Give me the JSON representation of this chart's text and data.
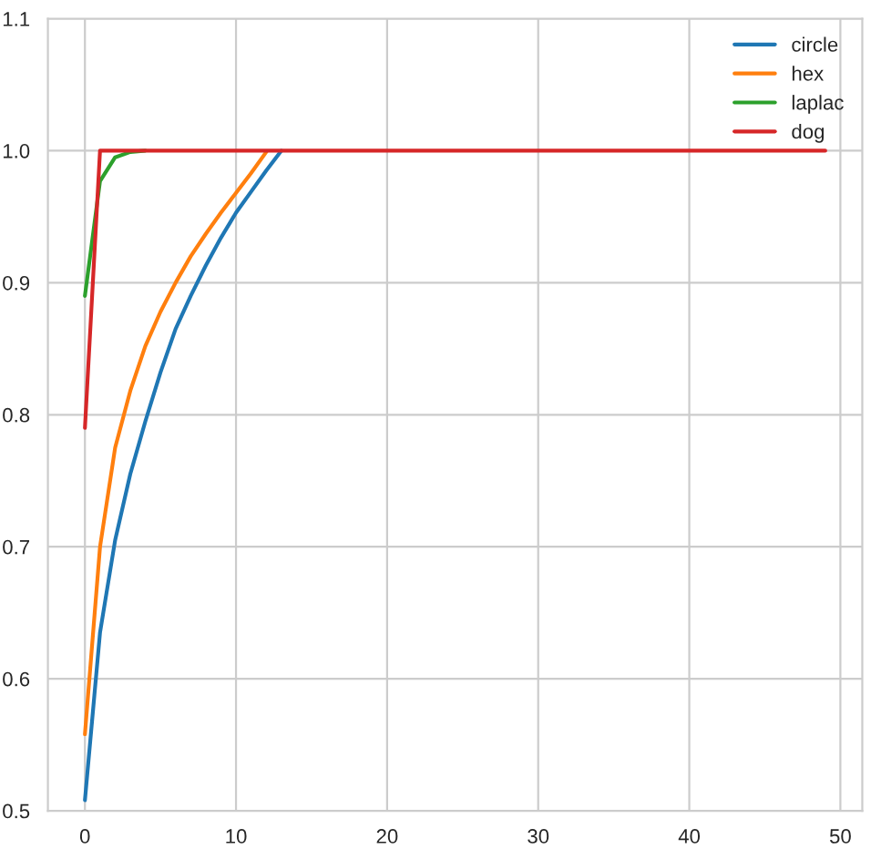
{
  "chart_data": {
    "type": "line",
    "x": [
      0,
      1,
      2,
      3,
      4,
      5,
      6,
      7,
      8,
      9,
      10,
      11,
      12,
      13,
      14,
      15,
      16,
      17,
      18,
      19,
      20,
      21,
      22,
      23,
      24,
      25,
      26,
      27,
      28,
      29,
      30,
      31,
      32,
      33,
      34,
      35,
      36,
      37,
      38,
      39,
      40,
      41,
      42,
      43,
      44,
      45,
      46,
      47,
      48,
      49
    ],
    "series": [
      {
        "name": "circle",
        "color": "#1f77b4",
        "values": [
          0.508,
          0.635,
          0.705,
          0.755,
          0.795,
          0.832,
          0.865,
          0.89,
          0.913,
          0.934,
          0.953,
          0.969,
          0.985,
          1.0,
          null,
          null,
          null,
          null,
          null,
          null,
          null,
          null,
          null,
          null,
          null,
          null,
          null,
          null,
          null,
          null,
          null,
          null,
          null,
          null,
          null,
          null,
          null,
          null,
          null,
          null,
          null,
          null,
          null,
          null,
          null,
          null,
          null,
          null,
          null,
          null
        ]
      },
      {
        "name": "hex",
        "color": "#ff7f0e",
        "values": [
          0.558,
          0.7,
          0.775,
          0.818,
          0.852,
          0.878,
          0.9,
          0.92,
          0.937,
          0.953,
          0.968,
          0.983,
          0.999,
          null,
          null,
          null,
          null,
          null,
          null,
          null,
          null,
          null,
          null,
          null,
          null,
          null,
          null,
          null,
          null,
          null,
          null,
          null,
          null,
          null,
          null,
          null,
          null,
          null,
          null,
          null,
          null,
          null,
          null,
          null,
          null,
          null,
          null,
          null,
          null,
          null
        ]
      },
      {
        "name": "laplac",
        "color": "#2ca02c",
        "values": [
          0.89,
          0.977,
          0.995,
          0.999,
          1.0,
          null,
          null,
          null,
          null,
          null,
          null,
          null,
          null,
          null,
          null,
          null,
          null,
          null,
          null,
          null,
          null,
          null,
          null,
          null,
          null,
          null,
          null,
          null,
          null,
          null,
          null,
          null,
          null,
          null,
          null,
          null,
          null,
          null,
          null,
          null,
          null,
          null,
          null,
          null,
          null,
          null,
          null,
          null,
          null,
          null
        ]
      },
      {
        "name": "dog",
        "color": "#d62728",
        "values": [
          0.79,
          1.0,
          1.0,
          1.0,
          1.0,
          1.0,
          1.0,
          1.0,
          1.0,
          1.0,
          1.0,
          1.0,
          1.0,
          1.0,
          1.0,
          1.0,
          1.0,
          1.0,
          1.0,
          1.0,
          1.0,
          1.0,
          1.0,
          1.0,
          1.0,
          1.0,
          1.0,
          1.0,
          1.0,
          1.0,
          1.0,
          1.0,
          1.0,
          1.0,
          1.0,
          1.0,
          1.0,
          1.0,
          1.0,
          1.0,
          1.0,
          1.0,
          1.0,
          1.0,
          1.0,
          1.0,
          1.0,
          1.0,
          1.0,
          1.0
        ]
      }
    ],
    "xlim": [
      -2.45,
      51.45
    ],
    "xticks": [
      0,
      10,
      20,
      30,
      40,
      50
    ],
    "ylim": [
      0.5,
      1.1
    ],
    "yticks": [
      0.5,
      0.6,
      0.7,
      0.8,
      0.9,
      {
        "value": 1.0,
        "label": "1.0"
      },
      1.1
    ],
    "grid": true,
    "legend": "top right"
  }
}
